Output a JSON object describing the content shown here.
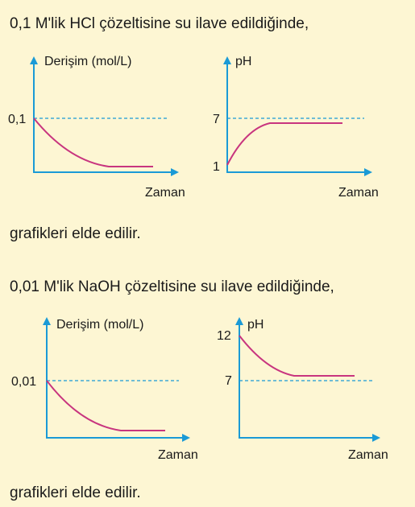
{
  "sections": [
    {
      "text": "0,1 M'lik HCl çözeltisine su ilave edildiğinde,",
      "graphs": [
        {
          "y_label": "Derişim (mol/L)",
          "x_label": "Zaman",
          "ticks": [
            "0,1"
          ]
        },
        {
          "y_label": "pH",
          "x_label": "Zaman",
          "ticks": [
            "7",
            "1"
          ]
        }
      ],
      "conclusion": "grafikleri elde edilir."
    },
    {
      "text": "0,01 M'lik NaOH çözeltisine su ilave edildiğinde,",
      "graphs": [
        {
          "y_label": "Derişim (mol/L)",
          "x_label": "Zaman",
          "ticks": [
            "0,01"
          ]
        },
        {
          "y_label": "pH",
          "x_label": "Zaman",
          "ticks": [
            "12",
            "7"
          ]
        }
      ],
      "conclusion": "grafikleri elde edilir."
    }
  ]
}
